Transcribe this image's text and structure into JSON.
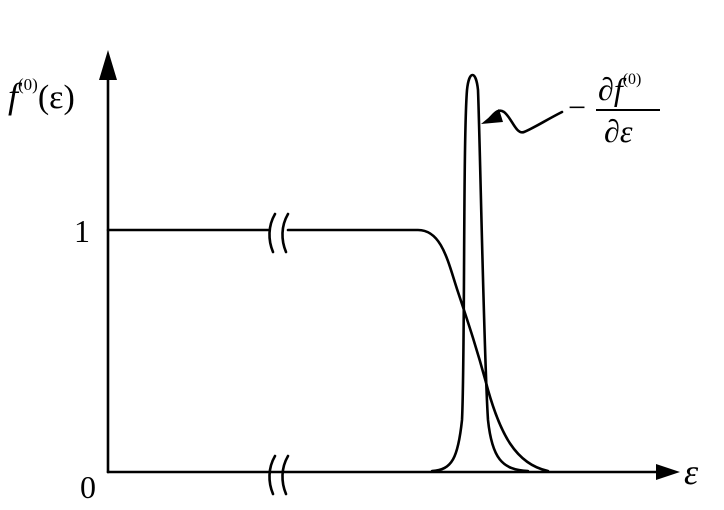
{
  "axes": {
    "y_label_base": "f",
    "y_label_sup": "(0)",
    "y_label_arg": "(ε)",
    "x_label": "ε",
    "tick_one": "1",
    "tick_zero": "0"
  },
  "annotation": {
    "minus": "−",
    "numerator_base": "∂f",
    "numerator_sup": "(0)",
    "denominator": "∂ε"
  },
  "colors": {
    "ink": "#000000",
    "background": "#ffffff"
  }
}
